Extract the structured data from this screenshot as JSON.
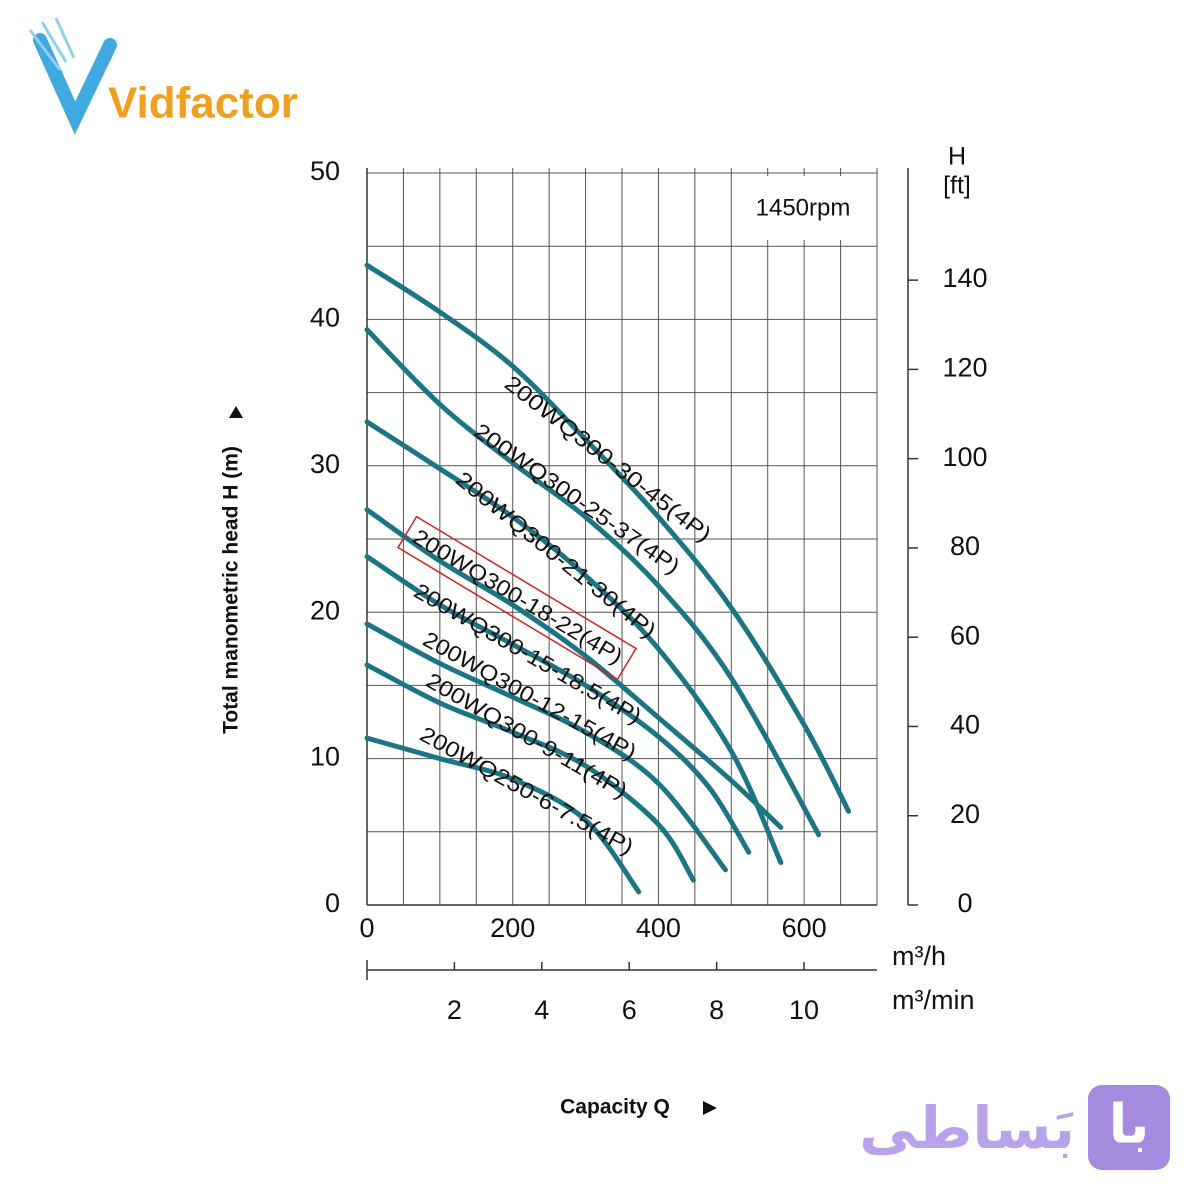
{
  "logo_left": "Vidfactor",
  "logo_right": {
    "badge": "با",
    "text": "بَساطی"
  },
  "chart_data": {
    "type": "line",
    "annotation": "1450rpm",
    "y_label": "Total manometric head H (m)",
    "x_label": "Capacity Q",
    "x_unit": "m³/h",
    "x2_unit": "m³/min",
    "y2_label": "H",
    "y2_unit": "[ft]",
    "xlim": [
      0,
      700
    ],
    "xticks": [
      0,
      200,
      400,
      600
    ],
    "x2lim": [
      0,
      11.67
    ],
    "x2ticks": [
      2,
      4,
      6,
      8,
      10
    ],
    "ylim": [
      0,
      50
    ],
    "yticks": [
      0,
      10,
      20,
      30,
      40,
      50
    ],
    "y2lim": [
      0,
      164
    ],
    "y2ticks": [
      0,
      20,
      40,
      60,
      80,
      100,
      120,
      140
    ],
    "xgrid": [
      0,
      50,
      100,
      150,
      200,
      250,
      300,
      350,
      400,
      450,
      500,
      550,
      600,
      650,
      700
    ],
    "ygrid": [
      0,
      5,
      10,
      15,
      20,
      25,
      30,
      35,
      40,
      45,
      50
    ],
    "grid": true,
    "legend": false,
    "highlight": 3,
    "series": [
      {
        "name": "200WQ300-30-45(4P)",
        "color": "#1c7484",
        "x": [
          0,
          100,
          200,
          300,
          400,
          500,
          600,
          661
        ],
        "values": [
          43.7,
          40.5,
          36.8,
          31.8,
          26.5,
          20.3,
          12.3,
          6.4
        ]
      },
      {
        "name": "200WQ300-25-37(4P)",
        "color": "#1c7484",
        "x": [
          0,
          100,
          200,
          300,
          400,
          500,
          620
        ],
        "values": [
          39.3,
          34.2,
          30.2,
          26.5,
          21.8,
          15.5,
          4.8
        ]
      },
      {
        "name": "200WQ300-21-30(4P)",
        "color": "#1c7484",
        "x": [
          0,
          100,
          200,
          300,
          400,
          500,
          568
        ],
        "values": [
          33,
          29.8,
          26.5,
          22.5,
          17.5,
          10.5,
          2.9
        ]
      },
      {
        "name": "200WQ300-18-22(4P)",
        "color": "#1c7484",
        "x": [
          0,
          100,
          200,
          300,
          400,
          500,
          568
        ],
        "values": [
          27,
          23.5,
          20.5,
          17,
          12.8,
          8.5,
          5.3
        ]
      },
      {
        "name": "200WQ300-15-18.5(4P)",
        "color": "#1c7484",
        "x": [
          0,
          100,
          200,
          300,
          400,
          470,
          524
        ],
        "values": [
          23.8,
          20.5,
          17.8,
          15,
          11.5,
          8,
          3.6
        ]
      },
      {
        "name": "200WQ300-12-15(4P)",
        "color": "#1c7484",
        "x": [
          0,
          100,
          200,
          300,
          400,
          492
        ],
        "values": [
          19.2,
          16.5,
          14.2,
          11.8,
          8.3,
          2.4
        ]
      },
      {
        "name": "200WQ300-9-11(4P)",
        "color": "#1c7484",
        "x": [
          0,
          100,
          200,
          300,
          400,
          448
        ],
        "values": [
          16.4,
          13.8,
          11.8,
          9.5,
          5.5,
          1.7
        ]
      },
      {
        "name": "200WQ250-6-7.5(4P)",
        "color": "#1c7484",
        "x": [
          0,
          100,
          200,
          300,
          373
        ],
        "values": [
          11.4,
          10,
          8.6,
          5.8,
          0.9
        ]
      }
    ]
  }
}
